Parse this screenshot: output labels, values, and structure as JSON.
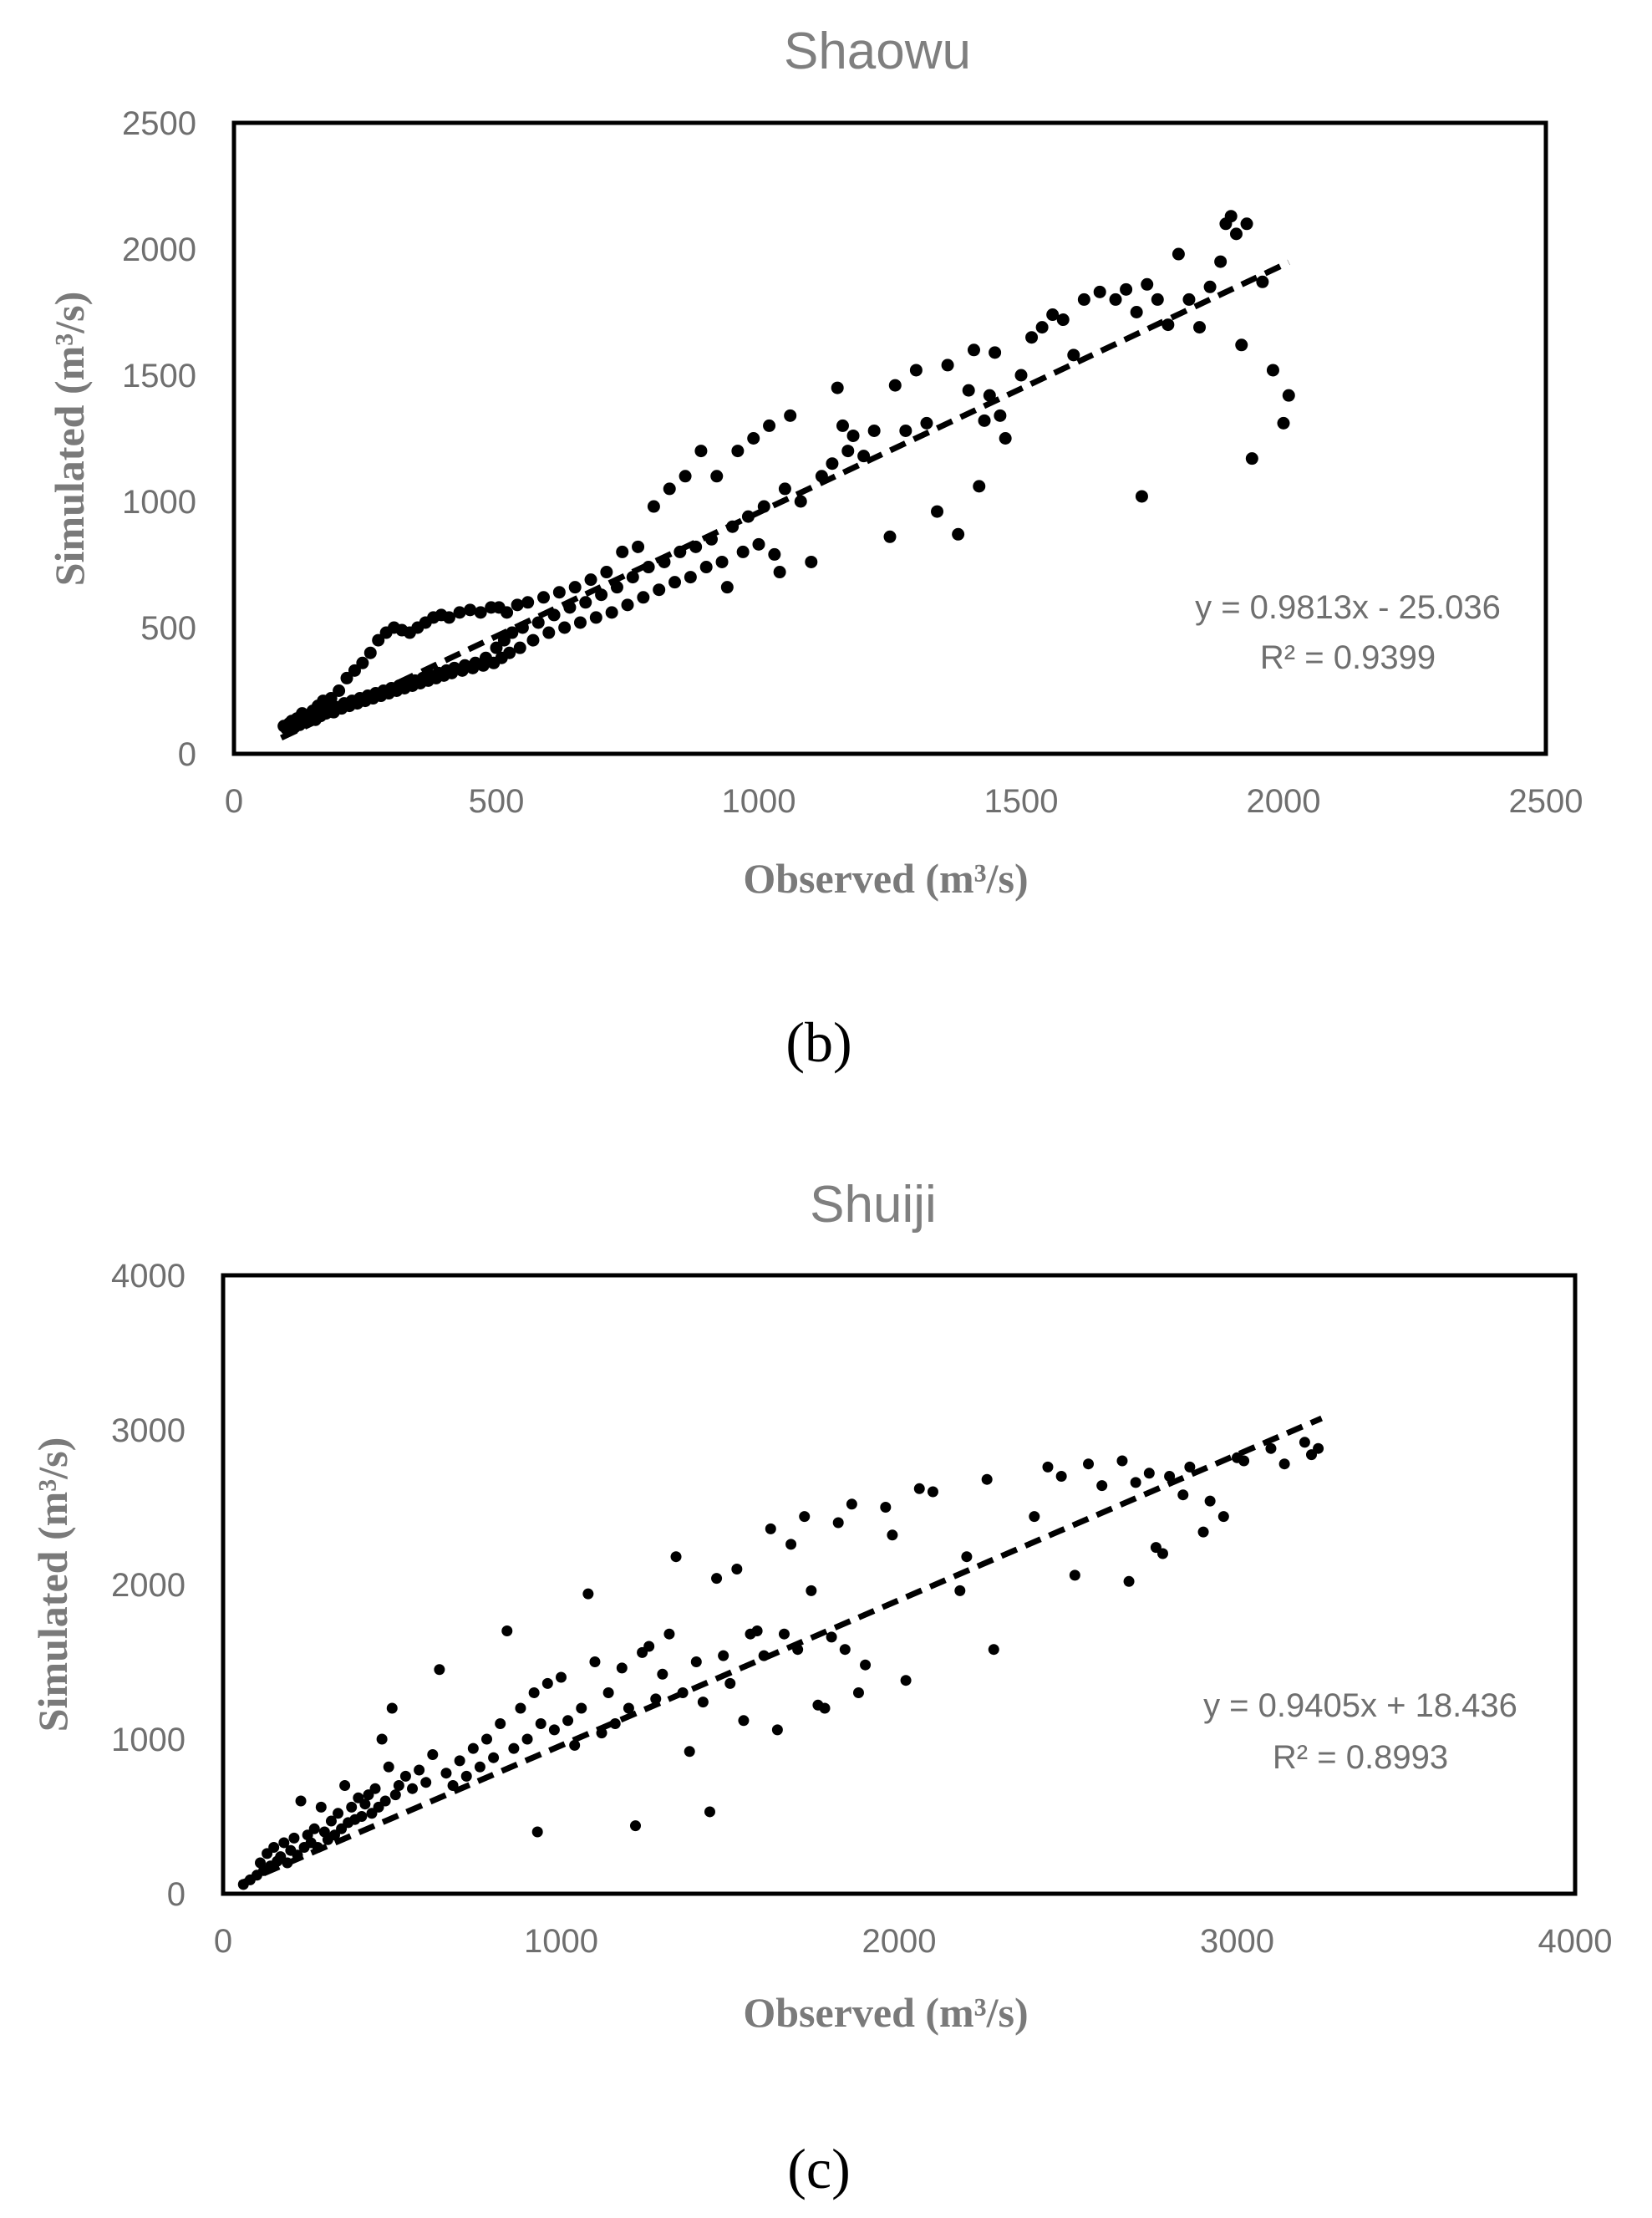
{
  "colors": {
    "title": "#7f7f7f",
    "tick": "#6f6f6f",
    "axis_label": "#7a7a7a",
    "point": "#000000"
  },
  "chart_data": [
    {
      "id": "b",
      "type": "scatter",
      "title": "Shaowu",
      "panel_label": "(b)",
      "xlabel": "Observed (m³/s)",
      "ylabel": "Simulated (m³/s)",
      "xlim": [
        0,
        2500
      ],
      "ylim": [
        0,
        2500
      ],
      "xticks": [
        0,
        500,
        1000,
        1500,
        2000,
        2500
      ],
      "yticks": [
        0,
        500,
        1000,
        1500,
        2000,
        2500
      ],
      "trendline": {
        "slope": 0.9813,
        "intercept": -25.036,
        "x_range": [
          90,
          2010
        ],
        "equation": "y = 0.9813x - 25.036",
        "r2": "R² = 0.9399"
      },
      "points": [
        [
          95,
          110
        ],
        [
          100,
          100
        ],
        [
          105,
          120
        ],
        [
          110,
          130
        ],
        [
          115,
          105
        ],
        [
          120,
          140
        ],
        [
          125,
          115
        ],
        [
          130,
          160
        ],
        [
          135,
          125
        ],
        [
          140,
          145
        ],
        [
          150,
          170
        ],
        [
          155,
          135
        ],
        [
          160,
          190
        ],
        [
          165,
          150
        ],
        [
          170,
          210
        ],
        [
          175,
          160
        ],
        [
          180,
          175
        ],
        [
          185,
          220
        ],
        [
          190,
          165
        ],
        [
          195,
          185
        ],
        [
          200,
          250
        ],
        [
          205,
          180
        ],
        [
          210,
          200
        ],
        [
          215,
          300
        ],
        [
          220,
          190
        ],
        [
          225,
          210
        ],
        [
          230,
          330
        ],
        [
          235,
          200
        ],
        [
          240,
          220
        ],
        [
          245,
          360
        ],
        [
          250,
          210
        ],
        [
          255,
          230
        ],
        [
          260,
          400
        ],
        [
          265,
          220
        ],
        [
          270,
          240
        ],
        [
          275,
          450
        ],
        [
          280,
          230
        ],
        [
          285,
          250
        ],
        [
          290,
          480
        ],
        [
          295,
          240
        ],
        [
          300,
          260
        ],
        [
          305,
          500
        ],
        [
          310,
          250
        ],
        [
          315,
          270
        ],
        [
          320,
          490
        ],
        [
          325,
          260
        ],
        [
          330,
          280
        ],
        [
          335,
          480
        ],
        [
          340,
          270
        ],
        [
          345,
          290
        ],
        [
          350,
          500
        ],
        [
          355,
          280
        ],
        [
          360,
          300
        ],
        [
          365,
          520
        ],
        [
          370,
          290
        ],
        [
          375,
          310
        ],
        [
          380,
          540
        ],
        [
          385,
          300
        ],
        [
          390,
          320
        ],
        [
          395,
          550
        ],
        [
          400,
          310
        ],
        [
          405,
          330
        ],
        [
          410,
          540
        ],
        [
          415,
          320
        ],
        [
          420,
          340
        ],
        [
          430,
          560
        ],
        [
          435,
          330
        ],
        [
          440,
          350
        ],
        [
          450,
          570
        ],
        [
          455,
          340
        ],
        [
          460,
          360
        ],
        [
          470,
          560
        ],
        [
          475,
          350
        ],
        [
          480,
          380
        ],
        [
          490,
          580
        ],
        [
          495,
          360
        ],
        [
          500,
          420
        ],
        [
          505,
          580
        ],
        [
          510,
          380
        ],
        [
          515,
          450
        ],
        [
          520,
          560
        ],
        [
          525,
          400
        ],
        [
          530,
          480
        ],
        [
          540,
          590
        ],
        [
          545,
          420
        ],
        [
          550,
          500
        ],
        [
          560,
          600
        ],
        [
          570,
          450
        ],
        [
          580,
          520
        ],
        [
          590,
          620
        ],
        [
          600,
          480
        ],
        [
          610,
          550
        ],
        [
          620,
          640
        ],
        [
          630,
          500
        ],
        [
          640,
          580
        ],
        [
          650,
          660
        ],
        [
          660,
          520
        ],
        [
          670,
          600
        ],
        [
          680,
          690
        ],
        [
          690,
          540
        ],
        [
          700,
          630
        ],
        [
          710,
          720
        ],
        [
          720,
          560
        ],
        [
          730,
          660
        ],
        [
          740,
          800
        ],
        [
          750,
          590
        ],
        [
          760,
          700
        ],
        [
          770,
          820
        ],
        [
          780,
          620
        ],
        [
          790,
          740
        ],
        [
          800,
          980
        ],
        [
          810,
          650
        ],
        [
          820,
          760
        ],
        [
          830,
          1050
        ],
        [
          840,
          680
        ],
        [
          850,
          800
        ],
        [
          860,
          1100
        ],
        [
          870,
          700
        ],
        [
          880,
          820
        ],
        [
          890,
          1200
        ],
        [
          900,
          740
        ],
        [
          910,
          850
        ],
        [
          920,
          1100
        ],
        [
          930,
          760
        ],
        [
          940,
          660
        ],
        [
          950,
          900
        ],
        [
          960,
          1200
        ],
        [
          970,
          800
        ],
        [
          980,
          940
        ],
        [
          990,
          1250
        ],
        [
          1000,
          830
        ],
        [
          1010,
          980
        ],
        [
          1020,
          1300
        ],
        [
          1030,
          790
        ],
        [
          1040,
          720
        ],
        [
          1050,
          1050
        ],
        [
          1060,
          1340
        ],
        [
          1080,
          1000
        ],
        [
          1100,
          760
        ],
        [
          1120,
          1100
        ],
        [
          1140,
          1150
        ],
        [
          1150,
          1450
        ],
        [
          1160,
          1300
        ],
        [
          1170,
          1200
        ],
        [
          1180,
          1260
        ],
        [
          1200,
          1180
        ],
        [
          1220,
          1280
        ],
        [
          1250,
          860
        ],
        [
          1260,
          1460
        ],
        [
          1280,
          1280
        ],
        [
          1300,
          1520
        ],
        [
          1320,
          1310
        ],
        [
          1340,
          960
        ],
        [
          1360,
          1540
        ],
        [
          1380,
          870
        ],
        [
          1400,
          1440
        ],
        [
          1410,
          1600
        ],
        [
          1420,
          1060
        ],
        [
          1430,
          1320
        ],
        [
          1440,
          1420
        ],
        [
          1450,
          1590
        ],
        [
          1460,
          1340
        ],
        [
          1470,
          1250
        ],
        [
          1500,
          1500
        ],
        [
          1520,
          1650
        ],
        [
          1540,
          1690
        ],
        [
          1560,
          1740
        ],
        [
          1580,
          1720
        ],
        [
          1600,
          1580
        ],
        [
          1620,
          1800
        ],
        [
          1650,
          1830
        ],
        [
          1680,
          1800
        ],
        [
          1700,
          1840
        ],
        [
          1720,
          1750
        ],
        [
          1730,
          1020
        ],
        [
          1740,
          1860
        ],
        [
          1760,
          1800
        ],
        [
          1780,
          1700
        ],
        [
          1800,
          1980
        ],
        [
          1820,
          1800
        ],
        [
          1840,
          1690
        ],
        [
          1860,
          1850
        ],
        [
          1880,
          1950
        ],
        [
          1890,
          2100
        ],
        [
          1900,
          2130
        ],
        [
          1910,
          2060
        ],
        [
          1920,
          1620
        ],
        [
          1930,
          2100
        ],
        [
          1940,
          1170
        ],
        [
          1960,
          1870
        ],
        [
          1980,
          1520
        ],
        [
          2000,
          1310
        ],
        [
          2010,
          1420
        ]
      ]
    },
    {
      "id": "c",
      "type": "scatter",
      "title": "Shuiji",
      "panel_label": "(c)",
      "xlabel": "Observed (m³/s)",
      "ylabel": "Simulated (m³/s)",
      "xlim": [
        0,
        4000
      ],
      "ylim": [
        0,
        4000
      ],
      "xticks": [
        0,
        1000,
        2000,
        3000,
        4000
      ],
      "yticks": [
        0,
        1000,
        2000,
        3000,
        4000
      ],
      "trendline": {
        "slope": 0.9405,
        "intercept": 18.436,
        "x_range": [
          50,
          3250
        ],
        "equation": "y = 0.9405x + 18.436",
        "r2": "R² = 0.8993"
      },
      "points": [
        [
          60,
          60
        ],
        [
          80,
          90
        ],
        [
          100,
          120
        ],
        [
          110,
          200
        ],
        [
          120,
          150
        ],
        [
          130,
          260
        ],
        [
          140,
          180
        ],
        [
          150,
          300
        ],
        [
          160,
          210
        ],
        [
          170,
          240
        ],
        [
          180,
          330
        ],
        [
          190,
          200
        ],
        [
          200,
          280
        ],
        [
          210,
          360
        ],
        [
          220,
          250
        ],
        [
          230,
          600
        ],
        [
          240,
          300
        ],
        [
          250,
          380
        ],
        [
          260,
          330
        ],
        [
          270,
          420
        ],
        [
          280,
          300
        ],
        [
          290,
          560
        ],
        [
          300,
          400
        ],
        [
          310,
          350
        ],
        [
          320,
          470
        ],
        [
          330,
          380
        ],
        [
          340,
          520
        ],
        [
          350,
          420
        ],
        [
          360,
          700
        ],
        [
          370,
          460
        ],
        [
          380,
          560
        ],
        [
          390,
          480
        ],
        [
          400,
          620
        ],
        [
          410,
          500
        ],
        [
          420,
          580
        ],
        [
          430,
          640
        ],
        [
          440,
          520
        ],
        [
          450,
          680
        ],
        [
          460,
          560
        ],
        [
          470,
          1000
        ],
        [
          480,
          600
        ],
        [
          490,
          820
        ],
        [
          500,
          1200
        ],
        [
          510,
          640
        ],
        [
          520,
          700
        ],
        [
          540,
          760
        ],
        [
          560,
          680
        ],
        [
          580,
          800
        ],
        [
          600,
          720
        ],
        [
          620,
          900
        ],
        [
          640,
          1450
        ],
        [
          660,
          780
        ],
        [
          680,
          700
        ],
        [
          700,
          860
        ],
        [
          720,
          760
        ],
        [
          740,
          940
        ],
        [
          760,
          820
        ],
        [
          780,
          1000
        ],
        [
          800,
          880
        ],
        [
          820,
          1100
        ],
        [
          840,
          1700
        ],
        [
          860,
          940
        ],
        [
          880,
          1200
        ],
        [
          900,
          1000
        ],
        [
          920,
          1300
        ],
        [
          930,
          400
        ],
        [
          940,
          1100
        ],
        [
          960,
          1360
        ],
        [
          980,
          1060
        ],
        [
          1000,
          1400
        ],
        [
          1020,
          1120
        ],
        [
          1040,
          960
        ],
        [
          1060,
          1200
        ],
        [
          1080,
          1940
        ],
        [
          1100,
          1500
        ],
        [
          1120,
          1040
        ],
        [
          1140,
          1300
        ],
        [
          1160,
          1100
        ],
        [
          1180,
          1460
        ],
        [
          1200,
          1200
        ],
        [
          1220,
          440
        ],
        [
          1240,
          1560
        ],
        [
          1260,
          1600
        ],
        [
          1280,
          1260
        ],
        [
          1300,
          1420
        ],
        [
          1320,
          1680
        ],
        [
          1340,
          2180
        ],
        [
          1360,
          1300
        ],
        [
          1380,
          920
        ],
        [
          1400,
          1500
        ],
        [
          1420,
          1240
        ],
        [
          1440,
          530
        ],
        [
          1460,
          2040
        ],
        [
          1480,
          1540
        ],
        [
          1500,
          1360
        ],
        [
          1520,
          2100
        ],
        [
          1540,
          1120
        ],
        [
          1560,
          1680
        ],
        [
          1580,
          1700
        ],
        [
          1600,
          1540
        ],
        [
          1620,
          2360
        ],
        [
          1640,
          1060
        ],
        [
          1660,
          1680
        ],
        [
          1680,
          2260
        ],
        [
          1700,
          1580
        ],
        [
          1720,
          2440
        ],
        [
          1740,
          1960
        ],
        [
          1760,
          1220
        ],
        [
          1780,
          1200
        ],
        [
          1800,
          1660
        ],
        [
          1820,
          2400
        ],
        [
          1840,
          1580
        ],
        [
          1860,
          2520
        ],
        [
          1880,
          1300
        ],
        [
          1900,
          1480
        ],
        [
          1960,
          2500
        ],
        [
          1980,
          2320
        ],
        [
          2020,
          1380
        ],
        [
          2060,
          2620
        ],
        [
          2100,
          2600
        ],
        [
          2180,
          1960
        ],
        [
          2200,
          2180
        ],
        [
          2260,
          2680
        ],
        [
          2280,
          1580
        ],
        [
          2400,
          2440
        ],
        [
          2440,
          2760
        ],
        [
          2480,
          2700
        ],
        [
          2520,
          2060
        ],
        [
          2560,
          2780
        ],
        [
          2600,
          2640
        ],
        [
          2660,
          2800
        ],
        [
          2680,
          2020
        ],
        [
          2700,
          2660
        ],
        [
          2740,
          2720
        ],
        [
          2760,
          2240
        ],
        [
          2780,
          2200
        ],
        [
          2800,
          2700
        ],
        [
          2840,
          2580
        ],
        [
          2860,
          2760
        ],
        [
          2900,
          2340
        ],
        [
          2920,
          2540
        ],
        [
          2960,
          2440
        ],
        [
          3000,
          2820
        ],
        [
          3020,
          2800
        ],
        [
          3100,
          2880
        ],
        [
          3140,
          2780
        ],
        [
          3200,
          2920
        ],
        [
          3220,
          2840
        ],
        [
          3240,
          2880
        ]
      ]
    }
  ]
}
